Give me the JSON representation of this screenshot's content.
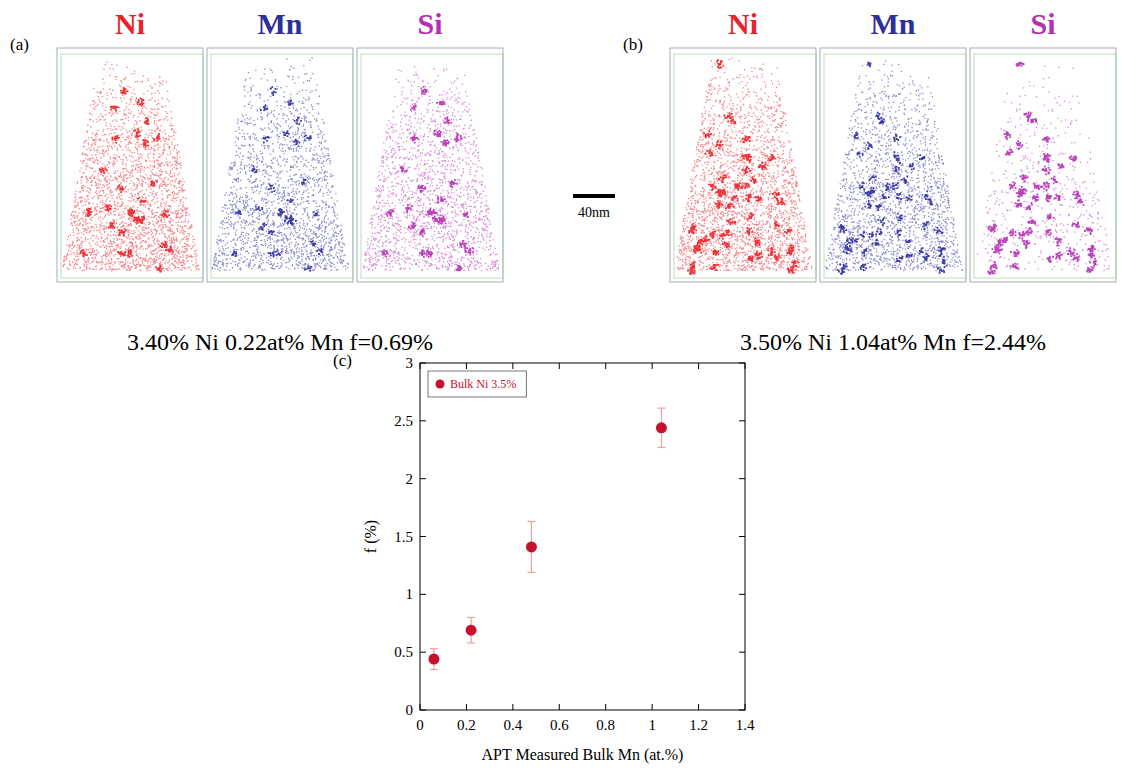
{
  "atom_maps": [
    {
      "panel_label": "(a)",
      "elements": [
        {
          "name": "Ni",
          "color": "#e8232a"
        },
        {
          "name": "Mn",
          "color": "#2e2e9c"
        },
        {
          "name": "Si",
          "color": "#b52fb5"
        }
      ],
      "caption": "3.40% Ni 0.22at% Mn f=0.69%"
    },
    {
      "panel_label": "(b)",
      "elements": [
        {
          "name": "Ni",
          "color": "#e8232a"
        },
        {
          "name": "Mn",
          "color": "#2e2e9c"
        },
        {
          "name": "Si",
          "color": "#b52fb5"
        }
      ],
      "caption": "3.50% Ni 1.04at% Mn f=2.44%"
    }
  ],
  "scale_bar": "40nm",
  "chart_data": {
    "type": "scatter",
    "panel_label": "(c)",
    "x_label": "APT Measured Bulk Mn (at.%)",
    "y_label": "f (%)",
    "x": [
      0.06,
      0.22,
      0.48,
      1.04
    ],
    "series": [
      {
        "name": "Bulk Ni 3.5%",
        "color": "#c8102e",
        "marker": "circle",
        "values": [
          0.44,
          0.69,
          1.41,
          2.44
        ],
        "errors": [
          0.09,
          0.11,
          0.22,
          0.17
        ]
      }
    ],
    "xlim": [
      0,
      1.4
    ],
    "xticks": [
      0,
      0.2,
      0.4,
      0.6,
      0.8,
      1,
      1.2,
      1.4
    ],
    "ylim": [
      0,
      3
    ],
    "yticks": [
      0,
      0.5,
      1,
      1.5,
      2,
      2.5,
      3
    ],
    "grid": false,
    "legend": "upper left"
  }
}
